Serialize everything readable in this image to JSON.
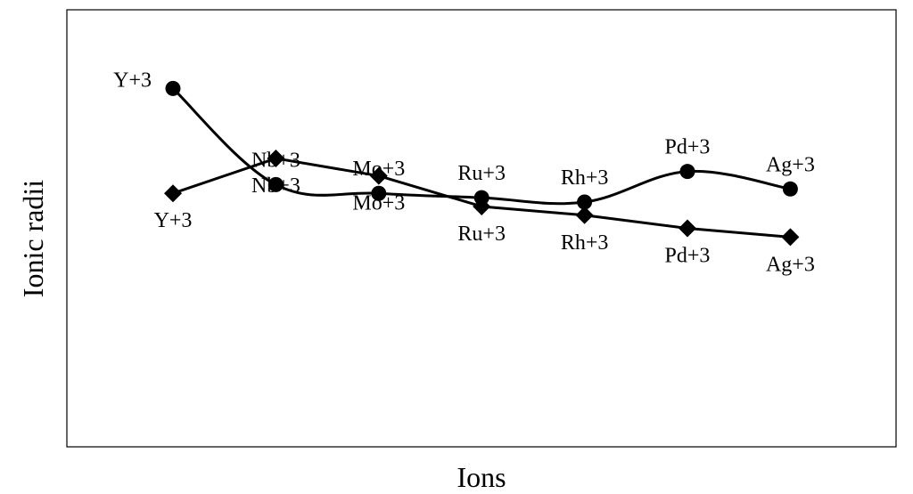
{
  "chart_data": {
    "type": "line",
    "title": "",
    "xlabel": "Ions",
    "ylabel": "Ionic radii",
    "categories": [
      "Y+3",
      "Nb+3",
      "Mo+3",
      "Ru+3",
      "Rh+3",
      "Pd+3",
      "Ag+3"
    ],
    "ylim": [
      0,
      100
    ],
    "grid": false,
    "legend": "none",
    "series": [
      {
        "marker": "circle",
        "color": "#000000",
        "values": [
          82,
          60,
          58,
          57,
          56,
          63,
          59
        ],
        "labels": [
          "Y+3",
          "Nb+3",
          "Mo+3",
          "Ru+3",
          "Rh+3",
          "Pd+3",
          "Ag+3"
        ],
        "label_position": "above"
      },
      {
        "marker": "diamond",
        "color": "#000000",
        "values": [
          58,
          66,
          62,
          55,
          53,
          50,
          48
        ],
        "labels": [
          "Y+3",
          "Nb+3",
          "Mo+3",
          "Ru+3",
          "Rh+3",
          "Pd+3",
          "Ag+3"
        ],
        "label_position": "below"
      }
    ]
  }
}
